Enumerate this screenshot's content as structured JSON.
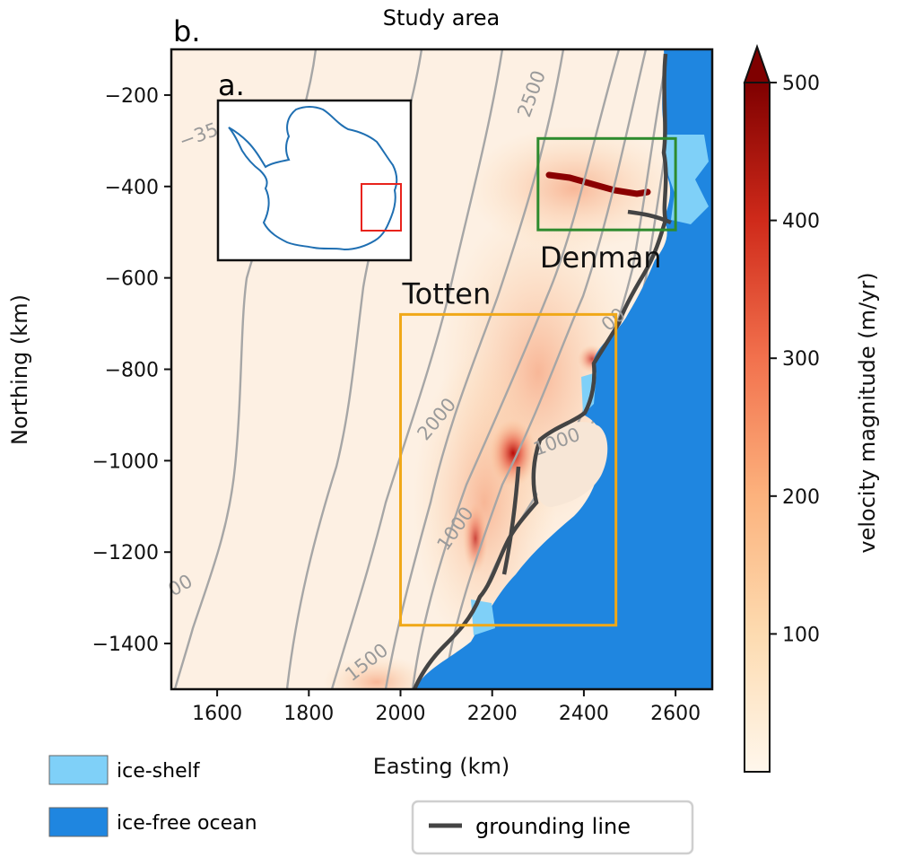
{
  "title": "Study area",
  "panel_labels": {
    "main": "b.",
    "inset": "a."
  },
  "axes": {
    "xlabel": "Easting (km)",
    "ylabel": "Northing (km)",
    "xlim": [
      1500,
      2680
    ],
    "ylim": [
      -1500,
      -100
    ],
    "xticks": [
      1600,
      1800,
      2000,
      2200,
      2400,
      2600
    ],
    "yticks": [
      -200,
      -400,
      -600,
      -800,
      -1000,
      -1200,
      -1400
    ],
    "xtick_labels": [
      "1600",
      "1800",
      "2000",
      "2200",
      "2400",
      "2600"
    ],
    "ytick_labels": [
      "−200",
      "−400",
      "−600",
      "−800",
      "−1000",
      "−1200",
      "−1400"
    ]
  },
  "regions": [
    {
      "name": "Denman",
      "x": [
        2300,
        2600
      ],
      "y": [
        -495,
        -295
      ],
      "color": "#2e8b2e"
    },
    {
      "name": "Totten",
      "x": [
        2000,
        2470
      ],
      "y": [
        -1360,
        -680
      ],
      "color": "#f0a818"
    }
  ],
  "contour_labels": [
    "2500",
    "−35",
    "2000",
    "1000",
    "1000",
    "1500",
    "00",
    "00"
  ],
  "colorbar": {
    "label": "velocity magnitude (m/yr)",
    "range": [
      0,
      500
    ],
    "ticks": [
      100,
      200,
      300,
      400,
      500
    ],
    "tick_labels": [
      "100",
      "200",
      "300",
      "400",
      "500"
    ],
    "extend": "max",
    "colormap": "OrRd"
  },
  "legend": {
    "patches": [
      {
        "label": "ice-shelf",
        "color": "#7fd0f8"
      },
      {
        "label": "ice-free ocean",
        "color": "#1f86e0"
      }
    ],
    "line": {
      "label": "grounding line",
      "color": "#444444"
    }
  },
  "colors": {
    "ocean": "#1f86e0",
    "ice_shelf": "#7fd0f8",
    "grounding_line": "#444444",
    "background_ice": "#fdf0e3"
  }
}
